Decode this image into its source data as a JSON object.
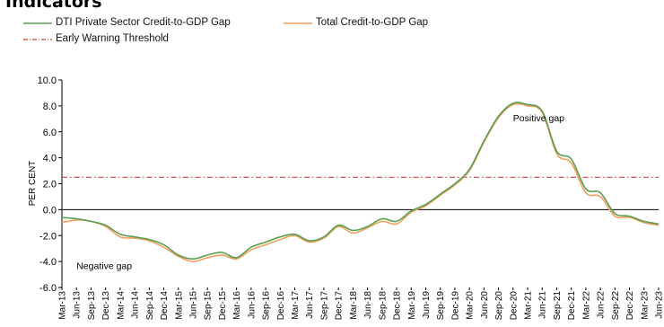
{
  "heading": "Indicators",
  "chart_data": {
    "type": "line",
    "ylabel": "PER CENT",
    "ylim": [
      -6.0,
      10.0
    ],
    "yticks": [
      "10.0",
      "8.0",
      "6.0",
      "4.0",
      "2.0",
      "0.0",
      "-2.0",
      "-4.0",
      "-6.0"
    ],
    "categories": [
      "Mar-13",
      "Jun-13",
      "Sep-13",
      "Dec-13",
      "Mar-14",
      "Jun-14",
      "Sep-14",
      "Dec-14",
      "Mar-15",
      "Jun-15",
      "Sep-15",
      "Dec-15",
      "Mar-16",
      "Jun-16",
      "Sep-16",
      "Dec-16",
      "Mar-17",
      "Jun-17",
      "Sep-17",
      "Dec-17",
      "Mar-18",
      "Jun-18",
      "Sep-18",
      "Dec-18",
      "Mar-19",
      "Jun-19",
      "Sep-19",
      "Dec-19",
      "Mar-20",
      "Jun-20",
      "Sep-20",
      "Dec-20",
      "Mar-21",
      "Jun-21",
      "Sep-21",
      "Dec-21",
      "Mar-22",
      "Jun-22",
      "Sep-22",
      "Dec-22",
      "Mar-23",
      "Jun-23"
    ],
    "series": [
      {
        "name": "DTI Private Sector Credit-to-GDP Gap",
        "color": "#5a9e52",
        "values": [
          -0.6,
          -0.7,
          -0.9,
          -1.2,
          -1.9,
          -2.1,
          -2.3,
          -2.7,
          -3.5,
          -3.8,
          -3.5,
          -3.3,
          -3.7,
          -2.9,
          -2.5,
          -2.1,
          -1.9,
          -2.4,
          -2.1,
          -1.2,
          -1.6,
          -1.3,
          -0.7,
          -0.9,
          -0.1,
          0.4,
          1.2,
          2.0,
          3.1,
          5.3,
          7.2,
          8.2,
          8.1,
          7.6,
          4.5,
          3.9,
          1.6,
          1.3,
          -0.3,
          -0.5,
          -0.9,
          -1.1
        ]
      },
      {
        "name": "Total Credit-to-GDP Gap",
        "color": "#f0a060",
        "values": [
          -1.0,
          -0.8,
          -0.9,
          -1.3,
          -2.1,
          -2.2,
          -2.4,
          -2.9,
          -3.6,
          -4.0,
          -3.7,
          -3.5,
          -3.8,
          -3.1,
          -2.7,
          -2.3,
          -2.0,
          -2.5,
          -2.2,
          -1.3,
          -1.8,
          -1.4,
          -0.9,
          -1.1,
          -0.2,
          0.3,
          1.1,
          1.9,
          3.0,
          5.2,
          7.1,
          8.1,
          8.0,
          7.5,
          4.3,
          3.6,
          1.3,
          1.0,
          -0.5,
          -0.6,
          -1.0,
          -1.2
        ]
      }
    ],
    "threshold": {
      "name": "Early Warning Threshold",
      "value": 2.5,
      "color": "#c94040"
    },
    "annotations": [
      {
        "text": "Positive gap",
        "x": "Dec-20",
        "y": 7.1
      },
      {
        "text": "Negative gap",
        "x": "Jun-13",
        "y": -4.3
      }
    ],
    "grid": false,
    "legend": "top-left"
  }
}
